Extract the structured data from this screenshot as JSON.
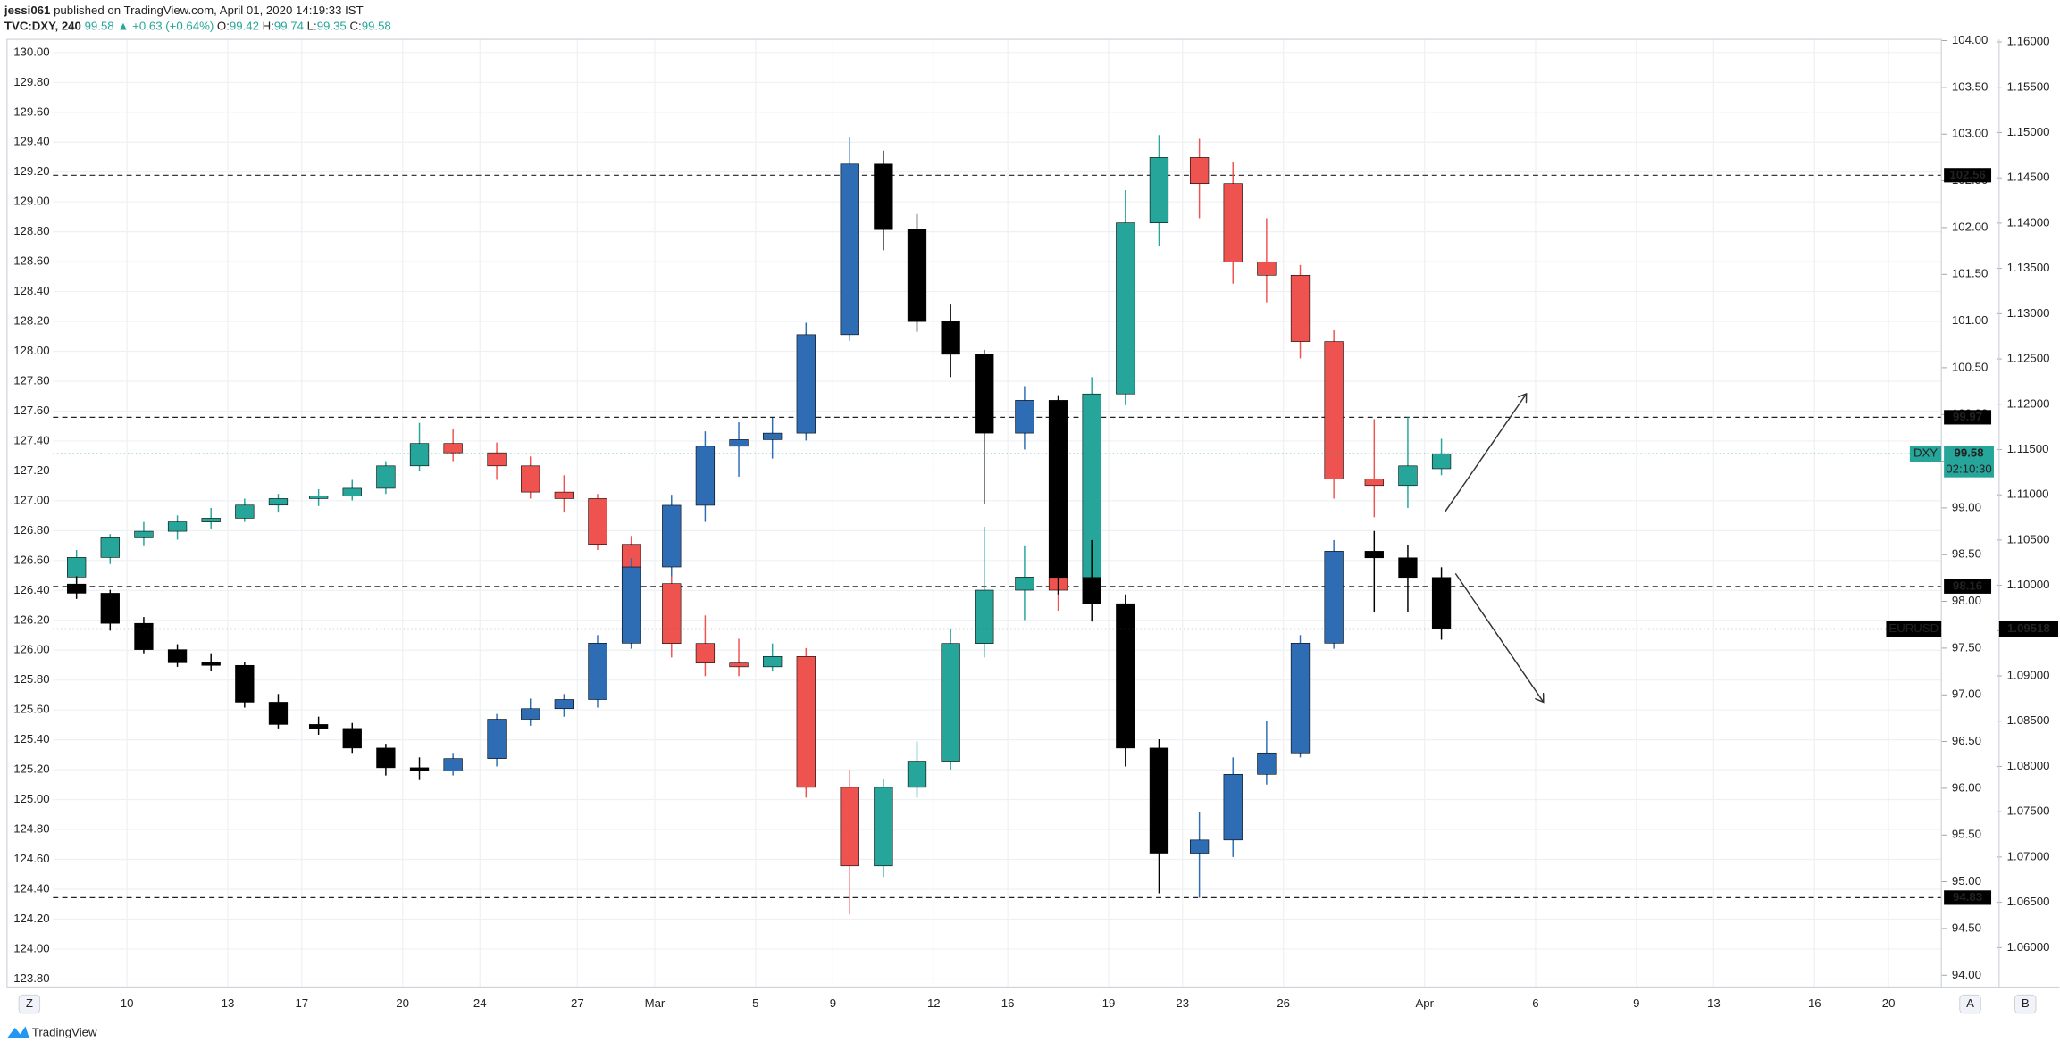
{
  "ui": {
    "author": "jessi061",
    "published": "published on TradingView.com, April 01, 2020 14:19:33 IST",
    "symbol": "TVC:DXY, 240",
    "last": "99.58",
    "change": "▲ +0.63 (+0.64%)",
    "ohlc": [
      {
        "label": "O:",
        "value": "99.42"
      },
      {
        "label": "H:",
        "value": "99.74"
      },
      {
        "label": "L:",
        "value": "99.35"
      },
      {
        "label": "C:",
        "value": "99.58"
      }
    ],
    "countdown": "02:10:30",
    "logo": "TradingView",
    "buttons": [
      "Z",
      "A",
      "B"
    ]
  },
  "chart_data": {
    "type": "candlestick",
    "grid": true,
    "xlim": [
      0,
      56.17
    ],
    "xticks": [
      {
        "value": 2.2,
        "label": "10"
      },
      {
        "value": 5.2,
        "label": "13"
      },
      {
        "value": 7.4,
        "label": "17"
      },
      {
        "value": 10.4,
        "label": "20"
      },
      {
        "value": 12.7,
        "label": "24"
      },
      {
        "value": 15.6,
        "label": "27"
      },
      {
        "value": 17.9,
        "label": "Mar"
      },
      {
        "value": 20.9,
        "label": "5"
      },
      {
        "value": 23.2,
        "label": "9"
      },
      {
        "value": 26.2,
        "label": "12"
      },
      {
        "value": 28.4,
        "label": "16"
      },
      {
        "value": 31.4,
        "label": "19"
      },
      {
        "value": 33.6,
        "label": "23"
      },
      {
        "value": 36.6,
        "label": "26"
      },
      {
        "value": 40.8,
        "label": "Apr"
      },
      {
        "value": 44.1,
        "label": "6"
      },
      {
        "value": 47.1,
        "label": "9"
      },
      {
        "value": 49.4,
        "label": "13"
      },
      {
        "value": 52.4,
        "label": "16"
      },
      {
        "value": 54.6,
        "label": "20"
      }
    ],
    "ylim": [
      123.746,
      130.088
    ],
    "yticks": [
      {
        "value": 123.8,
        "label": "123.80"
      },
      {
        "value": 124,
        "label": "124.00"
      },
      {
        "value": 124.2,
        "label": "124.20"
      },
      {
        "value": 124.4,
        "label": "124.40"
      },
      {
        "value": 124.6,
        "label": "124.60"
      },
      {
        "value": 124.8,
        "label": "124.80"
      },
      {
        "value": 125,
        "label": "125.00"
      },
      {
        "value": 125.2,
        "label": "125.20"
      },
      {
        "value": 125.4,
        "label": "125.40"
      },
      {
        "value": 125.6,
        "label": "125.60"
      },
      {
        "value": 125.8,
        "label": "125.80"
      },
      {
        "value": 126,
        "label": "126.00"
      },
      {
        "value": 126.2,
        "label": "126.20"
      },
      {
        "value": 126.4,
        "label": "126.40"
      },
      {
        "value": 126.6,
        "label": "126.60"
      },
      {
        "value": 126.8,
        "label": "126.80"
      },
      {
        "value": 127,
        "label": "127.00"
      },
      {
        "value": 127.2,
        "label": "127.20"
      },
      {
        "value": 127.4,
        "label": "127.40"
      },
      {
        "value": 127.6,
        "label": "127.60"
      },
      {
        "value": 127.8,
        "label": "127.80"
      },
      {
        "value": 128,
        "label": "128.00"
      },
      {
        "value": 128.2,
        "label": "128.20"
      },
      {
        "value": 128.4,
        "label": "128.40"
      },
      {
        "value": 128.6,
        "label": "128.60"
      },
      {
        "value": 128.8,
        "label": "128.80"
      },
      {
        "value": 129,
        "label": "129.00"
      },
      {
        "value": 129.2,
        "label": "129.20"
      },
      {
        "value": 129.4,
        "label": "129.40"
      },
      {
        "value": 129.6,
        "label": "129.60"
      },
      {
        "value": 129.8,
        "label": "129.80"
      },
      {
        "value": 130,
        "label": "130.00"
      }
    ],
    "y2lim": [
      93.874,
      104.014
    ],
    "y2ticks": [
      {
        "value": 94,
        "label": "94.00"
      },
      {
        "value": 94.5,
        "label": "94.50"
      },
      {
        "value": 95,
        "label": "95.00"
      },
      {
        "value": 95.5,
        "label": "95.50"
      },
      {
        "value": 96,
        "label": "96.00"
      },
      {
        "value": 96.5,
        "label": "96.50"
      },
      {
        "value": 97,
        "label": "97.00"
      },
      {
        "value": 97.5,
        "label": "97.50"
      },
      {
        "value": 98,
        "label": "98.00"
      },
      {
        "value": 98.5,
        "label": "98.50"
      },
      {
        "value": 99,
        "label": "99.00"
      },
      {
        "value": 99.5,
        "label": "99.50"
      },
      {
        "value": 100,
        "label": "100.00"
      },
      {
        "value": 100.5,
        "label": "100.50"
      },
      {
        "value": 101,
        "label": "101.00"
      },
      {
        "value": 101.5,
        "label": "101.50"
      },
      {
        "value": 102,
        "label": "102.00"
      },
      {
        "value": 102.5,
        "label": "102.50"
      },
      {
        "value": 103,
        "label": "103.00"
      },
      {
        "value": 103.5,
        "label": "103.50"
      },
      {
        "value": 104,
        "label": "104.00"
      }
    ],
    "y3lim": [
      1.05565,
      1.16029
    ],
    "y3ticks": [
      {
        "value": 1.06,
        "label": "1.06000"
      },
      {
        "value": 1.065,
        "label": "1.06500"
      },
      {
        "value": 1.07,
        "label": "1.07000"
      },
      {
        "value": 1.075,
        "label": "1.07500"
      },
      {
        "value": 1.08,
        "label": "1.08000"
      },
      {
        "value": 1.085,
        "label": "1.08500"
      },
      {
        "value": 1.09,
        "label": "1.09000"
      },
      {
        "value": 1.095,
        "label": "1.09500"
      },
      {
        "value": 1.1,
        "label": "1.10000"
      },
      {
        "value": 1.105,
        "label": "1.10500"
      },
      {
        "value": 1.11,
        "label": "1.11000"
      },
      {
        "value": 1.115,
        "label": "1.11500"
      },
      {
        "value": 1.12,
        "label": "1.12000"
      },
      {
        "value": 1.125,
        "label": "1.12500"
      },
      {
        "value": 1.13,
        "label": "1.13000"
      },
      {
        "value": 1.135,
        "label": "1.13500"
      },
      {
        "value": 1.14,
        "label": "1.14000"
      },
      {
        "value": 1.145,
        "label": "1.14500"
      },
      {
        "value": 1.15,
        "label": "1.15000"
      },
      {
        "value": 1.155,
        "label": "1.15500"
      },
      {
        "value": 1.16,
        "label": "1.16000"
      }
    ],
    "x": [
      0.7,
      1.7,
      2.7,
      3.7,
      4.7,
      5.7,
      6.7,
      7.9,
      8.9,
      9.9,
      10.9,
      11.9,
      13.2,
      14.2,
      15.2,
      16.2,
      17.2,
      18.4,
      19.4,
      20.4,
      21.4,
      22.4,
      23.7,
      24.7,
      25.7,
      26.7,
      27.7,
      28.9,
      29.9,
      30.9,
      31.9,
      32.9,
      34.1,
      35.1,
      36.1,
      37.1,
      38.1,
      39.3,
      40.3,
      41.3
    ],
    "levels": {
      "axis": "y2",
      "values": [
        102.56,
        99.97,
        98.16,
        94.83
      ]
    },
    "series": [
      {
        "name": "DXY",
        "axis": "y2",
        "up_color": "#26a69a",
        "down_color": "#ef5350",
        "price_line_color": "#26a69a",
        "open": [
          98.26,
          98.47,
          98.68,
          98.75,
          98.85,
          98.89,
          99.03,
          99.1,
          99.13,
          99.21,
          99.45,
          99.69,
          99.59,
          99.45,
          99.17,
          99.1,
          98.61,
          98.19,
          97.55,
          97.34,
          97.3,
          97.41,
          96.01,
          95.17,
          96.01,
          96.29,
          97.55,
          98.12,
          98.26,
          98.12,
          100.22,
          102.05,
          102.75,
          102.47,
          101.63,
          101.49,
          100.78,
          99.31,
          99.24,
          99.42
        ],
        "high": [
          98.55,
          98.72,
          98.85,
          98.92,
          99.0,
          99.1,
          99.15,
          99.2,
          99.3,
          99.5,
          99.91,
          99.85,
          99.7,
          99.55,
          99.35,
          99.15,
          98.7,
          98.4,
          97.85,
          97.6,
          97.55,
          97.5,
          96.2,
          96.1,
          96.5,
          97.7,
          98.8,
          98.6,
          98.45,
          100.4,
          102.4,
          102.99,
          102.95,
          102.7,
          102.1,
          101.6,
          100.9,
          99.95,
          99.97,
          99.74
        ],
        "low": [
          98.2,
          98.4,
          98.6,
          98.66,
          98.78,
          98.85,
          98.95,
          99.02,
          99.08,
          99.15,
          99.4,
          99.5,
          99.3,
          99.1,
          98.95,
          98.55,
          98.1,
          97.4,
          97.2,
          97.2,
          97.25,
          95.9,
          94.65,
          95.05,
          95.9,
          96.2,
          97.4,
          97.8,
          97.9,
          98.0,
          100.1,
          101.8,
          102.1,
          101.4,
          101.2,
          100.6,
          99.1,
          98.9,
          99.0,
          99.35
        ],
        "close": [
          98.47,
          98.68,
          98.75,
          98.85,
          98.89,
          99.03,
          99.1,
          99.13,
          99.21,
          99.45,
          99.69,
          99.59,
          99.45,
          99.17,
          99.1,
          98.61,
          98.19,
          97.55,
          97.34,
          97.3,
          97.41,
          96.01,
          95.17,
          96.01,
          96.29,
          97.55,
          98.12,
          98.26,
          98.12,
          100.22,
          102.05,
          102.75,
          102.47,
          101.63,
          101.49,
          100.78,
          99.31,
          99.24,
          99.45,
          99.58
        ]
      },
      {
        "name": "EURUSD",
        "axis": "y3",
        "up_color": "#2e6db4",
        "down_color": "#000000",
        "price_line_color": "#555555",
        "open": [
          1.10014,
          1.09913,
          1.0958,
          1.0929,
          1.09145,
          1.09116,
          1.0871,
          1.08464,
          1.0842,
          1.08203,
          1.07986,
          1.0795,
          1.08087,
          1.08522,
          1.08638,
          1.08739,
          1.09362,
          1.10203,
          1.10884,
          1.11536,
          1.11609,
          1.11681,
          1.12768,
          1.14652,
          1.13928,
          1.12913,
          1.12551,
          1.11681,
          1.12043,
          1.10087,
          1.09797,
          1.08203,
          1.07043,
          1.07188,
          1.07913,
          1.0815,
          1.09362,
          1.10377,
          1.10304,
          1.10087
        ],
        "high": [
          1.101,
          1.0995,
          1.0965,
          1.0935,
          1.0925,
          1.0915,
          1.088,
          1.0855,
          1.0848,
          1.0825,
          1.081,
          1.0815,
          1.0858,
          1.0875,
          1.088,
          1.0945,
          1.103,
          1.11,
          1.117,
          1.118,
          1.1185,
          1.129,
          1.1495,
          1.148,
          1.141,
          1.131,
          1.126,
          1.122,
          1.121,
          1.105,
          1.099,
          1.083,
          1.075,
          1.081,
          1.085,
          1.0945,
          1.105,
          1.106,
          1.1045,
          1.102
        ],
        "low": [
          1.0985,
          1.095,
          1.0925,
          1.091,
          1.0905,
          1.0865,
          1.0842,
          1.0835,
          1.0815,
          1.079,
          1.0785,
          1.079,
          1.08,
          1.0845,
          1.0855,
          1.0865,
          1.093,
          1.101,
          1.107,
          1.112,
          1.114,
          1.116,
          1.127,
          1.137,
          1.128,
          1.123,
          1.109,
          1.115,
          1.099,
          1.096,
          1.08,
          1.066,
          1.0655,
          1.07,
          1.078,
          1.081,
          1.093,
          1.097,
          1.097,
          1.094
        ],
        "close": [
          1.09913,
          1.0958,
          1.0929,
          1.09145,
          1.09116,
          1.0871,
          1.08464,
          1.0842,
          1.08203,
          1.07986,
          1.0795,
          1.08087,
          1.08522,
          1.08638,
          1.08739,
          1.09362,
          1.10203,
          1.10884,
          1.11536,
          1.11609,
          1.11681,
          1.12768,
          1.14652,
          1.13928,
          1.12913,
          1.12551,
          1.11681,
          1.12043,
          1.10087,
          1.09797,
          1.08203,
          1.07043,
          1.07188,
          1.07913,
          1.0815,
          1.09362,
          1.10377,
          1.10304,
          1.10087,
          1.09518
        ]
      }
    ]
  }
}
